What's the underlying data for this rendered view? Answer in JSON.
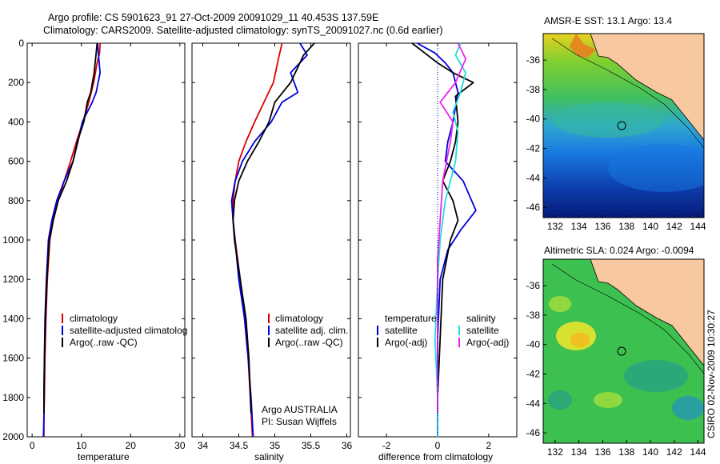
{
  "header": {
    "title_line1": "Argo profile: CS 5901623_91 27-Oct-2009 20091029_11 40.453S 137.59E",
    "title_line2": "Climatology: CARS2009. Satellite-adjusted climatology: synTS_20091027.nc (0.6d earlier)"
  },
  "side_text": "CSIRO 02-Nov-2009 10:30:27",
  "colors": {
    "red": "#dd0000",
    "blue": "#0000dd",
    "black": "#000000",
    "cyan": "#22dddd",
    "magenta": "#ee22ee",
    "land": "#f8c8a0"
  },
  "chart_data": [
    {
      "type": "line",
      "xlabel": "temperature",
      "xlim": [
        -1,
        31
      ],
      "ylim": [
        2000,
        0
      ],
      "xticks": [
        0,
        10,
        20,
        30
      ],
      "yticks": [
        0,
        200,
        400,
        600,
        800,
        1000,
        1200,
        1400,
        1600,
        1800,
        2000
      ],
      "legend": [
        "climatology",
        "satellite-adjusted climatolog",
        "Argo(..raw -QC)"
      ],
      "series": [
        {
          "name": "climatology",
          "color": "#dd0000",
          "x": [
            13.8,
            13.7,
            13.2,
            12.5,
            11.5,
            10.3,
            9.0,
            7.8,
            6.5,
            5.3,
            4.3,
            3.6,
            3.1,
            2.8,
            2.6,
            2.5,
            2.4,
            2.4
          ],
          "y": [
            0,
            50,
            100,
            200,
            300,
            400,
            500,
            600,
            700,
            800,
            900,
            1000,
            1200,
            1400,
            1600,
            1800,
            1900,
            2000
          ]
        },
        {
          "name": "satellite-adjusted climatolog",
          "color": "#0000dd",
          "x": [
            13.3,
            13.4,
            13.8,
            13.0,
            12.2,
            10.2,
            9.3,
            8.3,
            6.5,
            5.0,
            4.0,
            3.3,
            2.9,
            2.6,
            2.5,
            2.4,
            2.4,
            2.3
          ],
          "y": [
            0,
            40,
            150,
            250,
            300,
            400,
            500,
            600,
            700,
            800,
            900,
            1000,
            1200,
            1400,
            1600,
            1800,
            1900,
            2000
          ]
        },
        {
          "name": "Argo(..raw -QC)",
          "color": "#000000",
          "x": [
            13.2,
            13.0,
            12.6,
            11.9,
            11.2,
            10.5,
            9.2,
            8.3,
            7.0,
            5.3,
            4.3,
            3.5,
            3.0,
            2.7,
            2.5,
            2.4,
            2.4
          ],
          "y": [
            0,
            50,
            150,
            250,
            300,
            400,
            500,
            600,
            700,
            800,
            900,
            1000,
            1200,
            1400,
            1600,
            1800,
            1880
          ]
        }
      ]
    },
    {
      "type": "line",
      "xlabel": "salinity",
      "xlim": [
        33.85,
        36.05
      ],
      "ylim": [
        2000,
        0
      ],
      "xticks": [
        34,
        34.5,
        35,
        35.5,
        36
      ],
      "legend": [
        "climatology",
        "satellite adj. clim.",
        "Argo(..raw -QC)"
      ],
      "annotation": [
        "Argo AUSTRALIA",
        "PI: Susan Wijffels"
      ],
      "series": [
        {
          "name": "climatology",
          "color": "#dd0000",
          "x": [
            35.1,
            35.05,
            34.98,
            34.85,
            34.72,
            34.6,
            34.5,
            34.45,
            34.42,
            34.42,
            34.45,
            34.52,
            34.58,
            34.63,
            34.66,
            34.69
          ],
          "y": [
            0,
            80,
            200,
            300,
            400,
            500,
            600,
            700,
            800,
            900,
            1000,
            1200,
            1400,
            1600,
            1800,
            2000
          ]
        },
        {
          "name": "satellite adj. clim.",
          "color": "#0000dd",
          "x": [
            35.35,
            35.45,
            35.22,
            35.32,
            35.1,
            34.95,
            34.72,
            34.55,
            34.45,
            34.4,
            34.42,
            34.5,
            34.58,
            34.63,
            34.67,
            34.7
          ],
          "y": [
            0,
            60,
            150,
            250,
            300,
            400,
            500,
            600,
            700,
            800,
            900,
            1200,
            1400,
            1600,
            1800,
            2000
          ]
        },
        {
          "name": "Argo(..raw -QC)",
          "color": "#000000",
          "x": [
            35.55,
            35.4,
            35.22,
            35.0,
            34.92,
            34.78,
            34.62,
            34.5,
            34.44,
            34.42,
            34.44,
            34.52,
            34.6,
            34.64,
            34.67
          ],
          "y": [
            0,
            60,
            200,
            300,
            400,
            500,
            600,
            700,
            800,
            900,
            1000,
            1200,
            1400,
            1600,
            1880
          ]
        }
      ]
    },
    {
      "type": "line",
      "xlabel": "difference from climatology",
      "xlim": [
        -3.1,
        3.1
      ],
      "ylim": [
        2000,
        0
      ],
      "xticks": [
        -2,
        0,
        2
      ],
      "legend_headers": [
        "temperature",
        "salinity"
      ],
      "legend": [
        "satellite",
        "Argo(-adj)",
        "satellite",
        "Argo(-adj)"
      ],
      "series": [
        {
          "name": "temperature satellite",
          "color": "#0000dd",
          "x": [
            -0.8,
            -0.1,
            0.3,
            0.6,
            0.8,
            0.6,
            0.4,
            0.3,
            1.0,
            1.5,
            0.9,
            0.4,
            0.1,
            0.0,
            0.0,
            0.0
          ],
          "y": [
            0,
            50,
            100,
            150,
            250,
            400,
            500,
            600,
            700,
            850,
            950,
            1050,
            1200,
            1500,
            1800,
            2000
          ]
        },
        {
          "name": "temperature Argo(-adj)",
          "color": "#000000",
          "x": [
            -1.0,
            -0.5,
            0.0,
            0.6,
            1.4,
            0.7,
            0.8,
            0.7,
            0.5,
            0.2,
            0.6,
            0.8,
            0.5,
            0.2,
            0.1,
            0.0,
            0.0
          ],
          "y": [
            0,
            50,
            100,
            150,
            200,
            270,
            400,
            500,
            600,
            700,
            800,
            900,
            1000,
            1200,
            1500,
            1800,
            1880
          ]
        },
        {
          "name": "salinity satellite",
          "color": "#22dddd",
          "x": [
            0.9,
            0.7,
            1.1,
            0.9,
            0.6,
            0.8,
            0.7,
            0.3,
            0.1,
            0.0,
            -0.1,
            0.0,
            0.0
          ],
          "y": [
            0,
            60,
            150,
            250,
            350,
            450,
            600,
            800,
            1000,
            1200,
            1500,
            1800,
            2000
          ]
        },
        {
          "name": "salinity Argo(-adj)",
          "color": "#ee22ee",
          "x": [
            0.8,
            1.1,
            0.7,
            0.1,
            0.6,
            0.5,
            0.2,
            0.1,
            0.0,
            0.0,
            0.0
          ],
          "y": [
            0,
            80,
            200,
            300,
            400,
            500,
            700,
            900,
            1100,
            1400,
            1880
          ]
        }
      ]
    },
    {
      "type": "heatmap",
      "title": "AMSR-E SST: 13.1 Argo: 13.4",
      "xlim": [
        131,
        144.5
      ],
      "ylim": [
        -46.7,
        -34.2
      ],
      "xticks": [
        132,
        134,
        136,
        138,
        140,
        142,
        144
      ],
      "yticks": [
        -36,
        -38,
        -40,
        -42,
        -44,
        -46
      ],
      "marker": {
        "lon": 137.59,
        "lat": -40.453
      }
    },
    {
      "type": "heatmap",
      "title": "Altimetric SLA: 0.024 Argo: -0.0094",
      "xlim": [
        131,
        144.5
      ],
      "ylim": [
        -46.7,
        -34.2
      ],
      "xticks": [
        132,
        134,
        136,
        138,
        140,
        142,
        144
      ],
      "yticks": [
        -36,
        -38,
        -40,
        -42,
        -44,
        -46
      ],
      "marker": {
        "lon": 137.59,
        "lat": -40.453
      }
    }
  ]
}
